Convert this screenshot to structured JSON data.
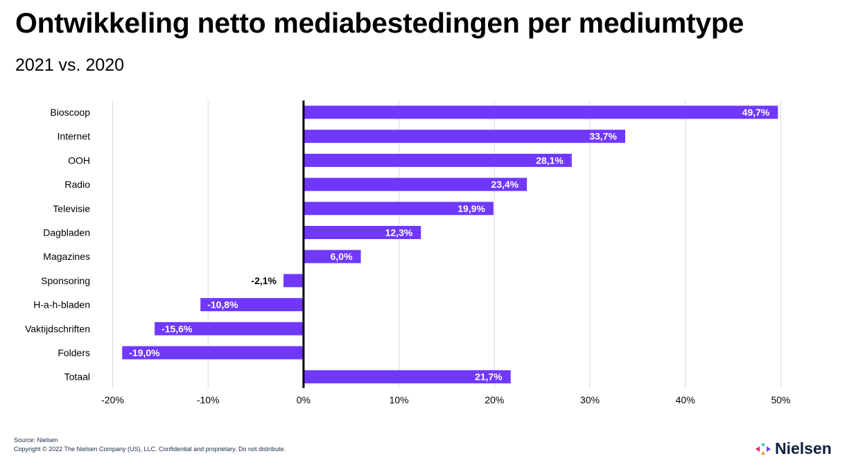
{
  "header": {
    "title": "Ontwikkeling netto mediabestedingen per mediumtype",
    "subtitle": "2021 vs. 2020"
  },
  "footer": {
    "source": "Source: Nielsen",
    "copyright": "Copyright © 2022 The Nielsen Company (US), LLC. Confidential and proprietary. Do not distribute."
  },
  "logo": {
    "text": "Nielsen",
    "icon": "nielsen-logo-icon"
  },
  "colors": {
    "bar": "#7038FF",
    "axis_zero": "#000000",
    "grid": "#d9d9d9",
    "label_inside": "#ffffff",
    "label_outside": "#000000"
  },
  "chart_data": {
    "type": "bar",
    "orientation": "horizontal",
    "title": "Ontwikkeling netto mediabestedingen per mediumtype",
    "subtitle": "2021 vs. 2020",
    "xlabel": "",
    "ylabel": "",
    "categories": [
      "Bioscoop",
      "Internet",
      "OOH",
      "Radio",
      "Televisie",
      "Dagbladen",
      "Magazines",
      "Sponsoring",
      "H-a-h-bladen",
      "Vaktijdschriften",
      "Folders",
      "Totaal"
    ],
    "values": [
      49.7,
      33.7,
      28.1,
      23.4,
      19.9,
      12.3,
      6.0,
      -2.1,
      -10.8,
      -15.6,
      -19.0,
      21.7
    ],
    "value_labels": [
      "49,7%",
      "33,7%",
      "28,1%",
      "23,4%",
      "19,9%",
      "12,3%",
      "6,0%",
      "-2,1%",
      "-10,8%",
      "-15,6%",
      "-19,0%",
      "21,7%"
    ],
    "xlim": [
      -20,
      50
    ],
    "xticks": [
      -20,
      -10,
      0,
      10,
      20,
      30,
      40,
      50
    ],
    "xtick_labels": [
      "-20%",
      "-10%",
      "0%",
      "10%",
      "20%",
      "30%",
      "40%",
      "50%"
    ],
    "grid": true,
    "legend": "none"
  }
}
